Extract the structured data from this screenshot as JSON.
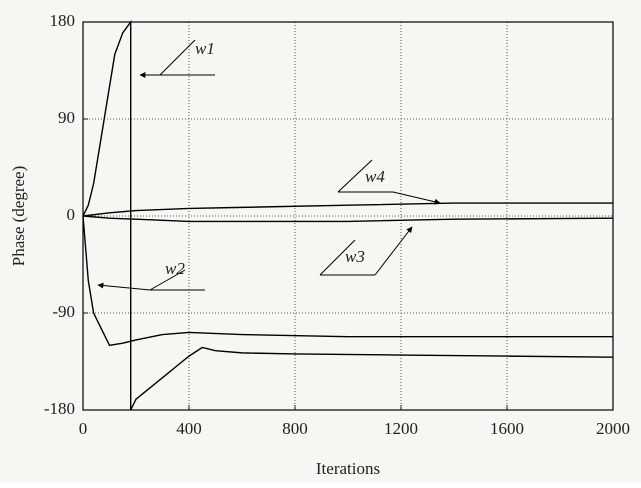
{
  "chart_data": {
    "type": "line",
    "xlabel": "Iterations",
    "ylabel": "Phase (degree)",
    "xlim": [
      0,
      2000
    ],
    "xticks": [
      0,
      400,
      800,
      1200,
      1600,
      2000
    ],
    "ylim": [
      -180,
      180
    ],
    "yticks": [
      -180,
      -90,
      0,
      90,
      180
    ],
    "grid": true,
    "series": [
      {
        "name": "w1",
        "color": "#000000",
        "x": [
          0,
          20,
          40,
          60,
          80,
          100,
          120,
          150,
          180,
          180,
          200,
          250,
          300,
          350,
          400,
          450,
          500,
          600,
          800,
          1200,
          1600,
          2000
        ],
        "values": [
          0,
          10,
          30,
          60,
          90,
          120,
          150,
          170,
          180,
          -180,
          -170,
          -160,
          -150,
          -140,
          -130,
          -122,
          -125,
          -127,
          -128,
          -129,
          -130,
          -131
        ]
      },
      {
        "name": "w2",
        "color": "#000000",
        "x": [
          0,
          20,
          40,
          60,
          100,
          150,
          200,
          300,
          400,
          600,
          1000,
          1400,
          2000
        ],
        "values": [
          0,
          -60,
          -90,
          -100,
          -120,
          -118,
          -115,
          -110,
          -108,
          -110,
          -112,
          -112,
          -112
        ]
      },
      {
        "name": "w3",
        "color": "#000000",
        "x": [
          0,
          100,
          200,
          400,
          600,
          1000,
          1400,
          2000
        ],
        "values": [
          0,
          -2,
          -3,
          -5,
          -5,
          -5,
          -3,
          -2
        ]
      },
      {
        "name": "w4",
        "color": "#000000",
        "x": [
          0,
          100,
          200,
          400,
          600,
          1000,
          1400,
          2000
        ],
        "values": [
          0,
          3,
          5,
          7,
          8,
          10,
          12,
          12
        ]
      }
    ]
  }
}
